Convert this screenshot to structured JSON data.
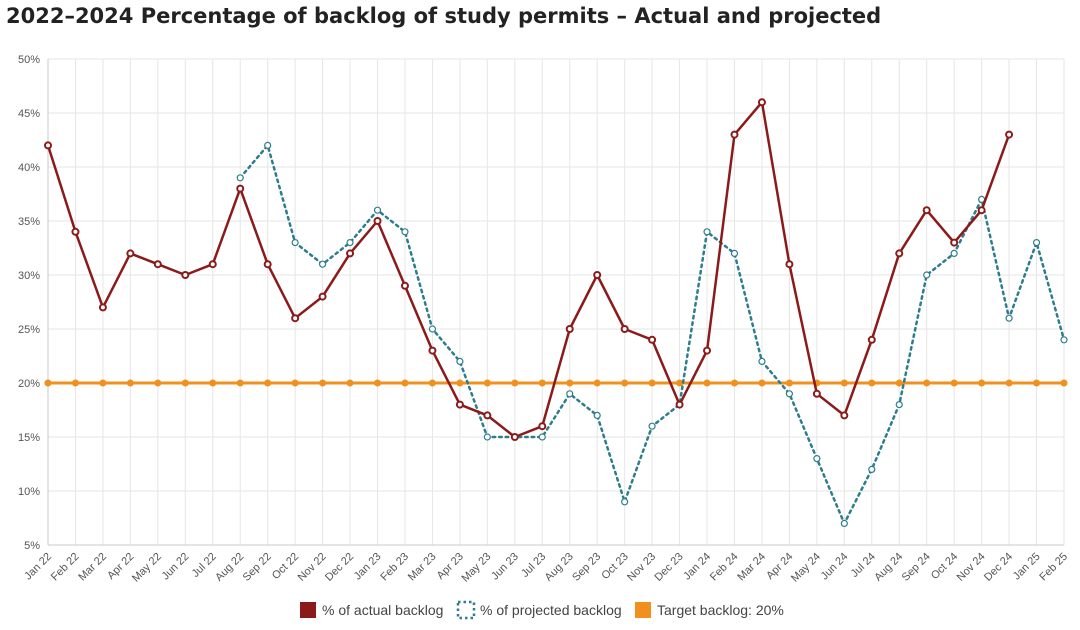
{
  "chart_data": {
    "type": "line",
    "title": "2022–2024 Percentage of backlog of study permits – Actual and projected",
    "xlabel": "",
    "ylabel": "",
    "ylim": [
      5,
      50
    ],
    "y_ticks": [
      "5%",
      "10%",
      "15%",
      "20%",
      "25%",
      "30%",
      "35%",
      "40%",
      "45%",
      "50%"
    ],
    "y_tick_values": [
      5,
      10,
      15,
      20,
      25,
      30,
      35,
      40,
      45,
      50
    ],
    "categories": [
      "Jan 22",
      "Feb 22",
      "Mar 22",
      "Apr 22",
      "May 22",
      "Jun 22",
      "Jul 22",
      "Aug 22",
      "Sep 22",
      "Oct 22",
      "Nov 22",
      "Dec 22",
      "Jan 23",
      "Feb 23",
      "Mar 23",
      "Apr 23",
      "May 23",
      "Jun 23",
      "Jul 23",
      "Aug 23",
      "Sep 23",
      "Oct 23",
      "Nov 23",
      "Dec 23",
      "Jan 24",
      "Feb 24",
      "Mar 24",
      "Apr 24",
      "May 24",
      "Jun 24",
      "Jul 24",
      "Aug 24",
      "Sep 24",
      "Oct 24",
      "Nov 24",
      "Dec 24",
      "Jan 25",
      "Feb 25"
    ],
    "series": [
      {
        "name": "% of actual backlog",
        "color": "#8b1a1a",
        "style": "solid",
        "values": [
          42,
          34,
          27,
          32,
          31,
          30,
          31,
          38,
          31,
          26,
          28,
          32,
          35,
          29,
          23,
          18,
          17,
          15,
          16,
          25,
          30,
          25,
          24,
          18,
          23,
          43,
          46,
          31,
          19,
          17,
          24,
          32,
          36,
          33,
          36,
          43,
          null,
          null
        ]
      },
      {
        "name": "% of projected backlog",
        "color": "#2e7d8c",
        "style": "dotted",
        "values": [
          null,
          null,
          null,
          null,
          null,
          null,
          null,
          39,
          42,
          33,
          31,
          33,
          36,
          34,
          25,
          22,
          15,
          15,
          15,
          19,
          17,
          9,
          16,
          18,
          34,
          32,
          22,
          19,
          13,
          7,
          12,
          18,
          30,
          32,
          37,
          26,
          33,
          24
        ]
      },
      {
        "name": "Target backlog: 20%",
        "color": "#f0901e",
        "style": "solid",
        "values": [
          20,
          20,
          20,
          20,
          20,
          20,
          20,
          20,
          20,
          20,
          20,
          20,
          20,
          20,
          20,
          20,
          20,
          20,
          20,
          20,
          20,
          20,
          20,
          20,
          20,
          20,
          20,
          20,
          20,
          20,
          20,
          20,
          20,
          20,
          20,
          20,
          20,
          20
        ]
      }
    ],
    "legend": {
      "position": "bottom",
      "items": [
        "% of actual backlog",
        "% of projected backlog",
        "Target backlog: 20%"
      ]
    },
    "grid": true
  }
}
